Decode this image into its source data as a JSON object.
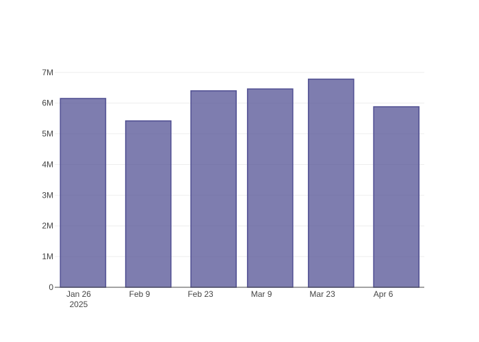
{
  "chart_data": {
    "type": "bar",
    "x": [
      "2025-01-27",
      "2025-02-11",
      "2025-02-26",
      "2025-03-11",
      "2025-03-25",
      "2025-04-09"
    ],
    "values": [
      6150000,
      5420000,
      6400000,
      6460000,
      6780000,
      5880000
    ],
    "color": "#535294",
    "xlim": [
      "2025-01-20T12:00Z",
      "2025-04-15T10:00Z"
    ],
    "xticks": [
      {
        "value": "2025-01-26",
        "label": "Jan 26\n2025"
      },
      {
        "value": "2025-02-09",
        "label": "Feb 9"
      },
      {
        "value": "2025-02-23",
        "label": "Feb 23"
      },
      {
        "value": "2025-03-09",
        "label": "Mar 9"
      },
      {
        "value": "2025-03-23",
        "label": "Mar 23"
      },
      {
        "value": "2025-04-06",
        "label": "Apr 6"
      }
    ],
    "ylim": [
      0,
      7130000
    ],
    "yticks": [
      0,
      {
        "value": 1000000,
        "label": "1M"
      },
      {
        "value": 2000000,
        "label": "2M"
      },
      {
        "value": 3000000,
        "label": "3M"
      },
      {
        "value": 4000000,
        "label": "4M"
      },
      {
        "value": 5000000,
        "label": "5M"
      },
      {
        "value": 6000000,
        "label": "6M"
      },
      {
        "value": 7000000,
        "label": "7M"
      }
    ],
    "grid": true
  }
}
